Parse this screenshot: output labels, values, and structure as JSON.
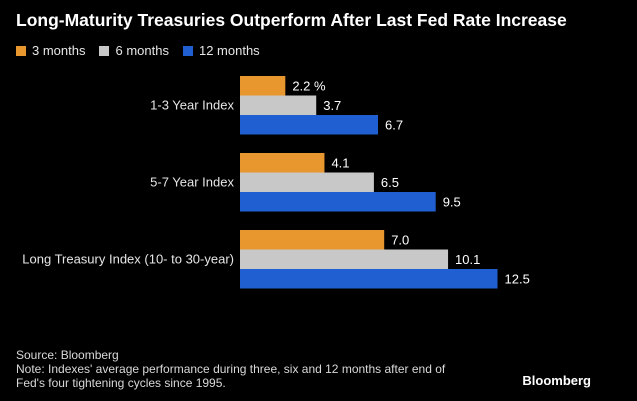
{
  "chart_data": {
    "type": "bar",
    "orientation": "horizontal",
    "title": "Long-Maturity Treasuries Outperform After Last Fed Rate Increase",
    "categories": [
      "1-3 Year Index",
      "5-7 Year Index",
      "Long Treasury Index (10- to 30-year)"
    ],
    "series": [
      {
        "name": "3 months",
        "color": "#e8962e",
        "values": [
          2.2,
          4.1,
          7.0
        ],
        "labels": [
          "2.2 %",
          "4.1",
          "7.0"
        ]
      },
      {
        "name": "6 months",
        "color": "#c8c8c8",
        "values": [
          3.7,
          6.5,
          10.1
        ],
        "labels": [
          "3.7",
          "6.5",
          "10.1"
        ]
      },
      {
        "name": "12 months",
        "color": "#1f5fd1",
        "values": [
          6.7,
          9.5,
          12.5
        ],
        "labels": [
          "6.7",
          "9.5",
          "12.5"
        ]
      }
    ],
    "xlim": [
      0,
      12.5
    ],
    "grid": false,
    "legend": "top-left"
  },
  "footnote": {
    "source": "Source: Bloomberg",
    "note_line1": "Note: Indexes' average performance during three, six and 12 months after end of",
    "note_line2": "Fed's four tightening cycles since 1995."
  },
  "brand": "Bloomberg"
}
